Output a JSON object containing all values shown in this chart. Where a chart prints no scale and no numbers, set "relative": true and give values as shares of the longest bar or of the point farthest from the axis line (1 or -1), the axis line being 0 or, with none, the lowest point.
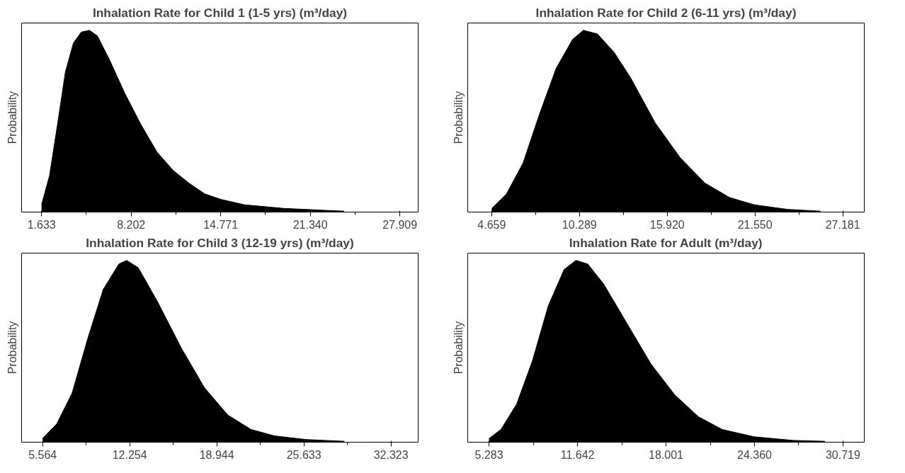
{
  "chart_data": [
    {
      "type": "area",
      "title": "Inhalation Rate for Child 1 (1-5 yrs) (m³/day)",
      "ylabel": "Probability",
      "relative": true,
      "grid": false,
      "tick_labels": "x",
      "color": "#000000",
      "x": [
        1.633,
        2.217,
        2.8,
        3.38,
        3.97,
        4.55,
        5.14,
        5.72,
        6.6,
        7.76,
        8.93,
        10.1,
        11.27,
        12.43,
        13.6,
        14.77,
        16.52,
        19.44,
        22.36,
        23.82
      ],
      "values": [
        0.04,
        0.2,
        0.48,
        0.77,
        0.93,
        0.99,
        1,
        0.97,
        0.84,
        0.65,
        0.48,
        0.33,
        0.23,
        0.16,
        0.1,
        0.07,
        0.04,
        0.02,
        0.01,
        0.005
      ],
      "xlim": [
        0.17,
        29.25
      ],
      "xticks": [
        1.633,
        {
          "value": 4.918,
          "label": null
        },
        8.202,
        {
          "value": 11.487,
          "label": null
        },
        14.771,
        {
          "value": 18.056,
          "label": null
        },
        {
          "value": 21.34,
          "label": "21.340"
        },
        {
          "value": 24.625,
          "label": null
        },
        27.909
      ]
    },
    {
      "type": "area",
      "title": "Inhalation Rate for Child 2 (6-11 yrs) (m³/day)",
      "ylabel": "Probability",
      "relative": true,
      "grid": false,
      "tick_labels": "x",
      "color": "#000000",
      "x": [
        4.66,
        5.61,
        6.67,
        7.73,
        8.79,
        9.85,
        10.54,
        11.44,
        12.5,
        13.56,
        15.15,
        16.74,
        18.33,
        19.92,
        21.51,
        23.63,
        25.75
      ],
      "values": [
        0.02,
        0.1,
        0.27,
        0.54,
        0.79,
        0.95,
        1,
        0.98,
        0.88,
        0.74,
        0.49,
        0.3,
        0.16,
        0.08,
        0.04,
        0.015,
        0.005
      ],
      "xlim": [
        3.12,
        28.56
      ],
      "xticks": [
        4.659,
        {
          "value": 7.474,
          "label": null
        },
        10.289,
        {
          "value": 13.105,
          "label": null
        },
        {
          "value": 15.92,
          "label": "15.920"
        },
        {
          "value": 18.735,
          "label": null
        },
        {
          "value": 21.55,
          "label": "21.550"
        },
        {
          "value": 24.366,
          "label": null
        },
        27.181
      ]
    },
    {
      "type": "area",
      "title": "Inhalation Rate for Child 3 (12-19 yrs) (m³/day)",
      "ylabel": "Probability",
      "relative": true,
      "grid": false,
      "tick_labels": "x",
      "color": "#000000",
      "x": [
        5.56,
        6.64,
        7.83,
        9.03,
        10.22,
        11.42,
        12.02,
        12.91,
        14.41,
        16.2,
        17.99,
        19.78,
        21.57,
        23.36,
        25.75,
        28.74
      ],
      "values": [
        0.02,
        0.1,
        0.27,
        0.57,
        0.84,
        0.98,
        1,
        0.96,
        0.77,
        0.52,
        0.3,
        0.15,
        0.07,
        0.035,
        0.015,
        0.005
      ],
      "xlim": [
        3.95,
        34.41
      ],
      "xticks": [
        5.564,
        {
          "value": 8.909,
          "label": null
        },
        12.254,
        {
          "value": 15.599,
          "label": null
        },
        18.944,
        {
          "value": 22.289,
          "label": null
        },
        25.633,
        {
          "value": 28.978,
          "label": null
        },
        32.323
      ]
    },
    {
      "type": "area",
      "title": "Inhalation Rate for Adult (m³/day)",
      "ylabel": "Probability",
      "relative": true,
      "grid": false,
      "tick_labels": "x",
      "color": "#000000",
      "x": [
        5.28,
        6.14,
        7.27,
        8.41,
        9.54,
        10.68,
        11.53,
        12.38,
        13.52,
        15.22,
        16.92,
        18.63,
        20.33,
        22.04,
        24.31,
        27.15,
        29.42
      ],
      "values": [
        0.02,
        0.07,
        0.21,
        0.45,
        0.75,
        0.95,
        1,
        0.98,
        0.87,
        0.65,
        0.43,
        0.26,
        0.14,
        0.07,
        0.03,
        0.01,
        0.005
      ],
      "xlim": [
        3.75,
        32.25
      ],
      "xticks": [
        5.283,
        {
          "value": 8.463,
          "label": null
        },
        11.642,
        {
          "value": 14.822,
          "label": null
        },
        18.001,
        {
          "value": 21.181,
          "label": null
        },
        {
          "value": 24.36,
          "label": "24.360"
        },
        {
          "value": 27.54,
          "label": null
        },
        30.719
      ]
    }
  ]
}
